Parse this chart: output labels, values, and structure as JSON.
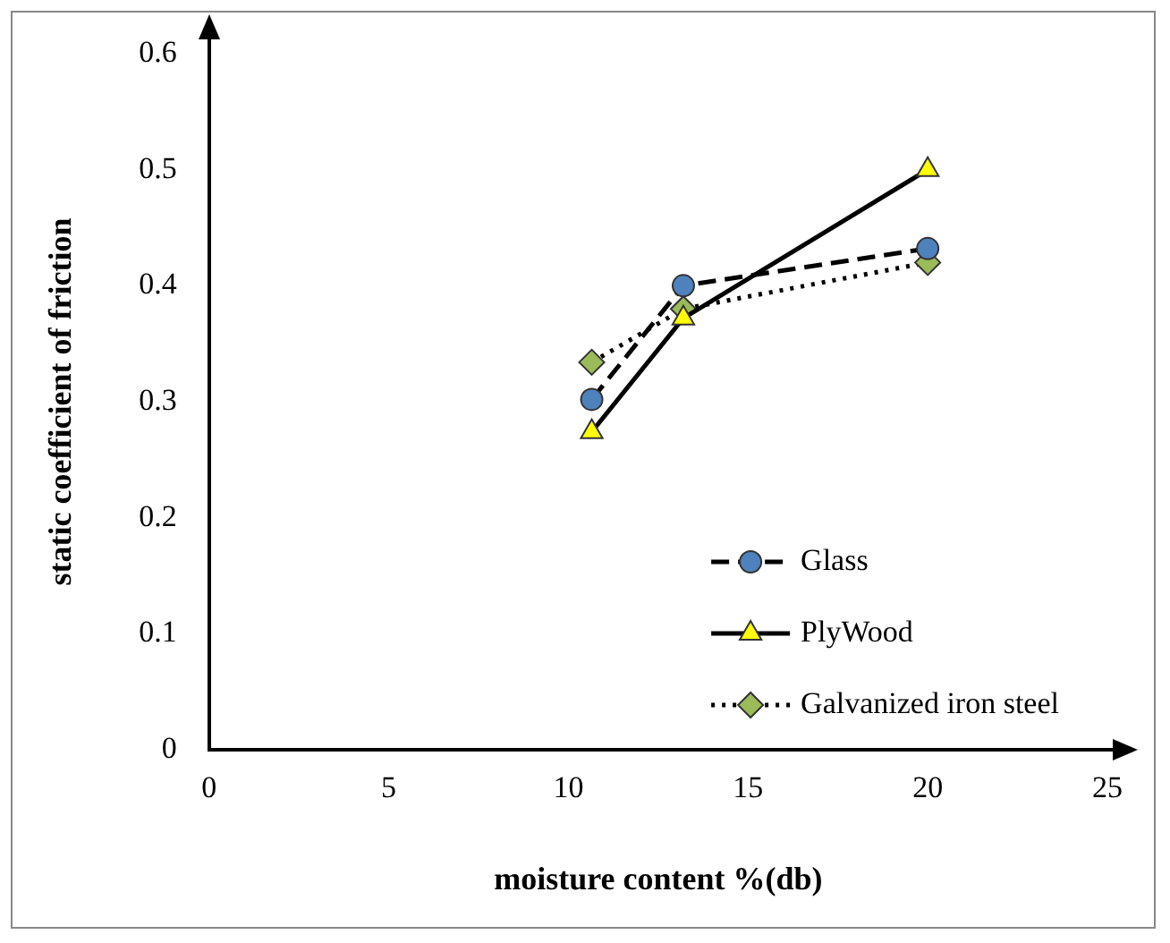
{
  "chart_data": {
    "type": "line",
    "xlabel": "moisture content %(db)",
    "ylabel": "static coefficient of friction",
    "x": [
      10.65,
      13.2,
      20
    ],
    "series": [
      {
        "name": "Glass",
        "color": "#4f81bd",
        "values": [
          0.302,
          0.4,
          0.432
        ],
        "line_style": "dashed",
        "marker": "circle"
      },
      {
        "name": "PlyWood",
        "color": "#ffff00",
        "values": [
          0.274,
          0.372,
          0.5
        ],
        "line_style": "solid",
        "marker": "triangle"
      },
      {
        "name": "Galvanized iron steel",
        "color": "#9bbb59",
        "values": [
          0.334,
          0.38,
          0.42
        ],
        "line_style": "dotted",
        "marker": "diamond"
      }
    ],
    "xlim": [
      0,
      25
    ],
    "xticks": [
      0,
      5,
      10,
      15,
      20,
      25
    ],
    "ylim": [
      0,
      0.6
    ],
    "yticks": [
      0,
      0.1,
      0.2,
      0.3,
      0.4,
      0.5,
      0.6
    ],
    "grid": false,
    "legend": "bottom right"
  }
}
